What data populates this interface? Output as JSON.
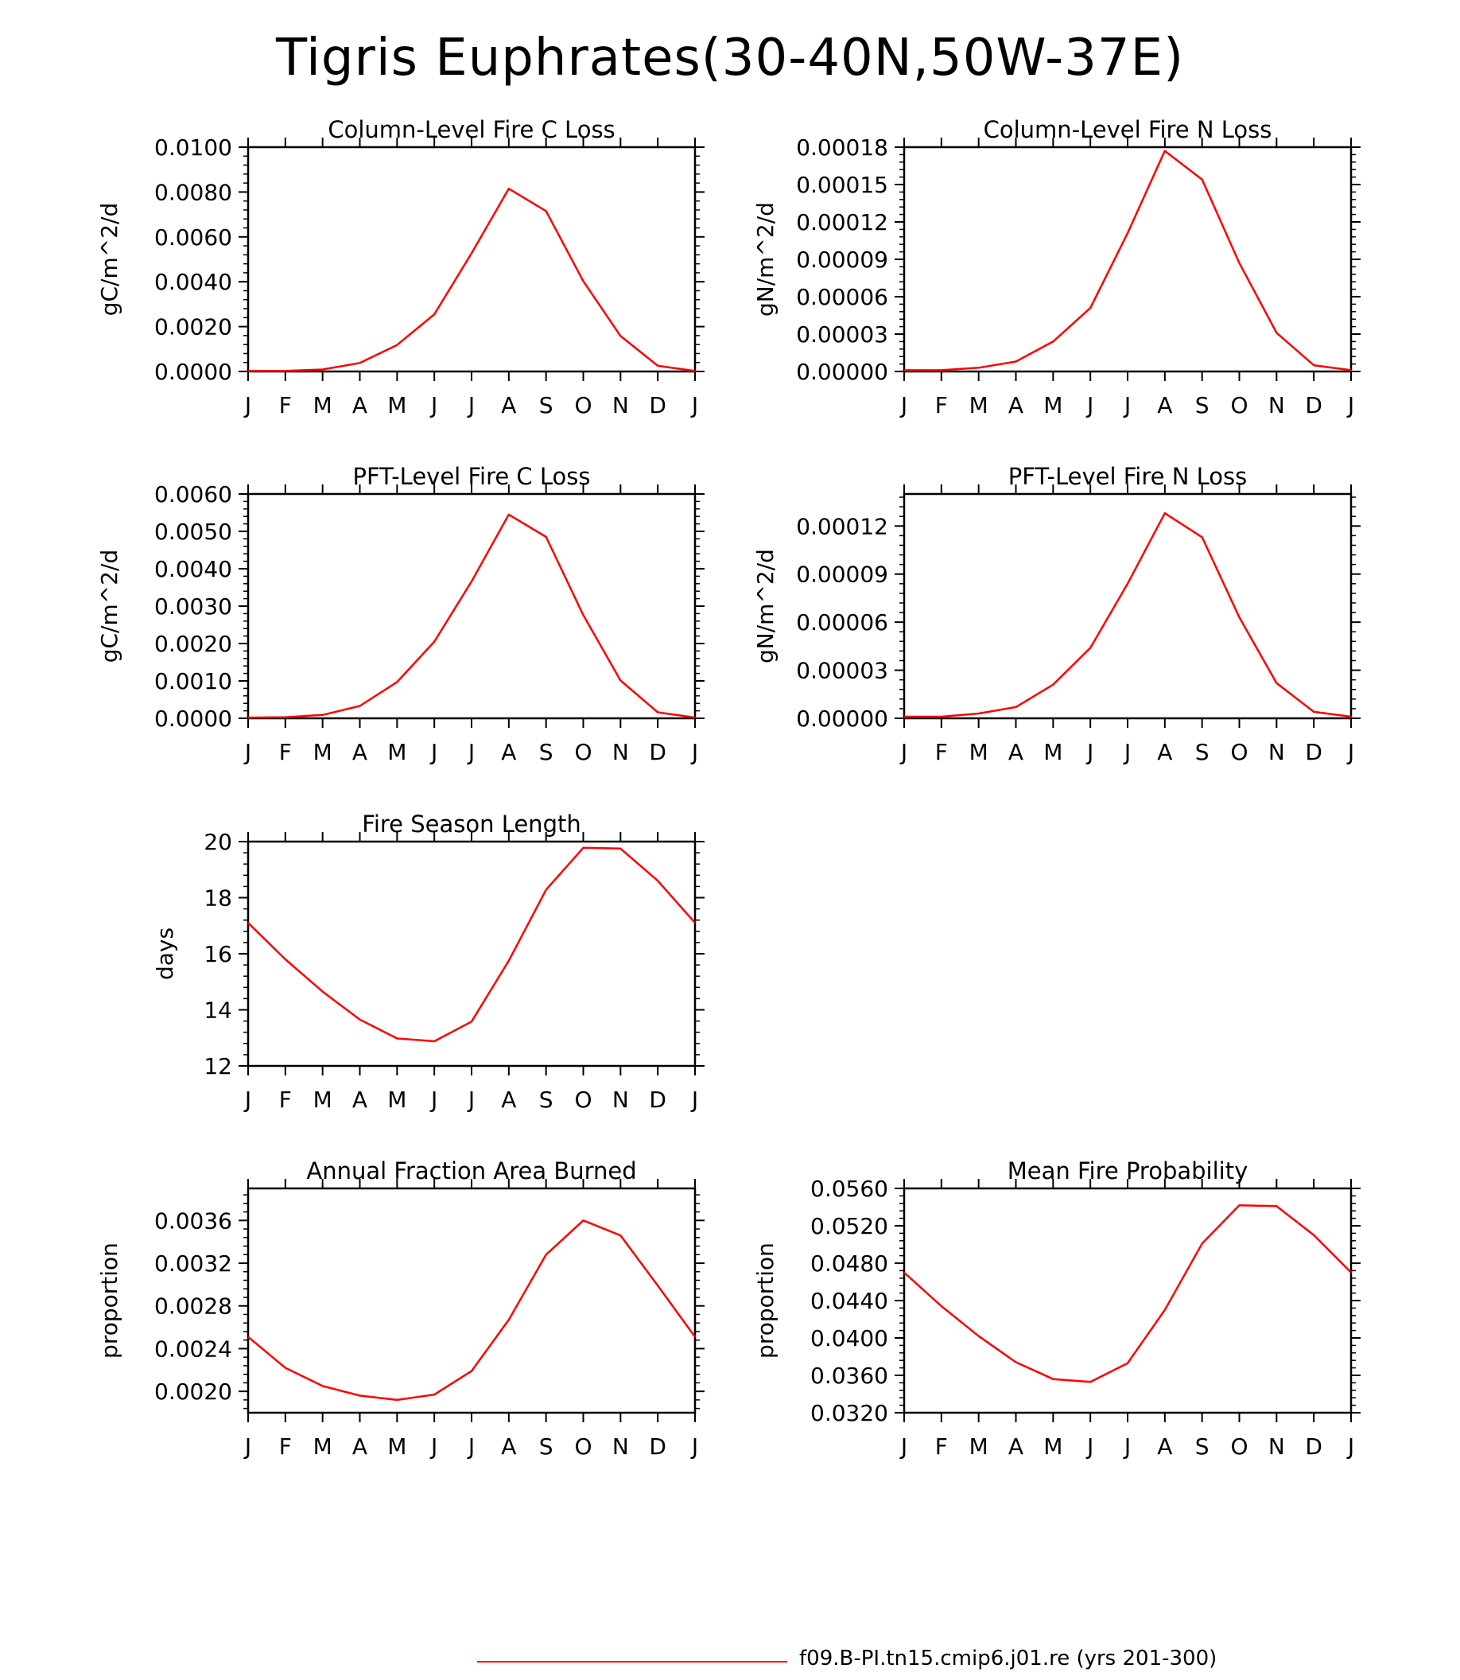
{
  "title": "Tigris Euphrates(30-40N,50W-37E)",
  "legend": {
    "label": "f09.B-PI.tn15.cmip6.j01.re (yrs 201-300)",
    "color": "#ff0000"
  },
  "months": [
    "J",
    "F",
    "M",
    "A",
    "M",
    "J",
    "J",
    "A",
    "S",
    "O",
    "N",
    "D",
    "J"
  ],
  "chart_data": [
    {
      "type": "line",
      "title": "Column-Level Fire C Loss",
      "ylabel": "gC/m^2/d",
      "x": [
        "J",
        "F",
        "M",
        "A",
        "M",
        "J",
        "J",
        "A",
        "S",
        "O",
        "N",
        "D",
        "J"
      ],
      "series": [
        {
          "name": "f09.B-PI.tn15.cmip6.j01.re (yrs 201-300)",
          "values": [
            2e-05,
            3e-05,
            9e-05,
            0.00038,
            0.00118,
            0.00255,
            0.00527,
            0.00815,
            0.00715,
            0.00403,
            0.00158,
            0.00025,
            2e-05
          ]
        }
      ],
      "ylim": [
        0,
        0.01
      ],
      "yticks": [
        "0.0000",
        "0.0020",
        "0.0040",
        "0.0060",
        "0.0080",
        "0.0100"
      ],
      "line_color": "#ff0000"
    },
    {
      "type": "line",
      "title": "Column-Level Fire N Loss",
      "ylabel": "gN/m^2/d",
      "x": [
        "J",
        "F",
        "M",
        "A",
        "M",
        "J",
        "J",
        "A",
        "S",
        "O",
        "N",
        "D",
        "J"
      ],
      "series": [
        {
          "name": "f09.B-PI.tn15.cmip6.j01.re (yrs 201-300)",
          "values": [
            1e-06,
            1e-06,
            3e-06,
            8e-06,
            2.4e-05,
            5.1e-05,
            0.000111,
            0.000177,
            0.000154,
            8.7e-05,
            3.1e-05,
            5e-06,
            1e-06
          ]
        }
      ],
      "ylim": [
        0,
        0.00018
      ],
      "yticks": [
        "0.00000",
        "0.00003",
        "0.00006",
        "0.00009",
        "0.00012",
        "0.00015",
        "0.00018"
      ],
      "line_color": "#ff0000"
    },
    {
      "type": "line",
      "title": "PFT-Level Fire C Loss",
      "ylabel": "gC/m^2/d",
      "x": [
        "J",
        "F",
        "M",
        "A",
        "M",
        "J",
        "J",
        "A",
        "S",
        "O",
        "N",
        "D",
        "J"
      ],
      "series": [
        {
          "name": "f09.B-PI.tn15.cmip6.j01.re (yrs 201-300)",
          "values": [
            2e-05,
            3e-05,
            9e-05,
            0.00033,
            0.00097,
            0.00205,
            0.00366,
            0.00545,
            0.00485,
            0.00276,
            0.00101,
            0.00016,
            2e-05
          ]
        }
      ],
      "ylim": [
        0,
        0.006
      ],
      "yticks": [
        "0.0000",
        "0.0010",
        "0.0020",
        "0.0030",
        "0.0040",
        "0.0050",
        "0.0060"
      ],
      "line_color": "#ff0000"
    },
    {
      "type": "line",
      "title": "PFT-Level Fire N Loss",
      "ylabel": "gN/m^2/d",
      "x": [
        "J",
        "F",
        "M",
        "A",
        "M",
        "J",
        "J",
        "A",
        "S",
        "O",
        "N",
        "D",
        "J"
      ],
      "series": [
        {
          "name": "f09.B-PI.tn15.cmip6.j01.re (yrs 201-300)",
          "values": [
            1e-06,
            1e-06,
            3e-06,
            7e-06,
            2.1e-05,
            4.4e-05,
            8.4e-05,
            0.000128,
            0.000113,
            6.3e-05,
            2.2e-05,
            4e-06,
            1e-06
          ]
        }
      ],
      "ylim": [
        0,
        0.00014
      ],
      "yticks": [
        "0.00000",
        "0.00003",
        "0.00006",
        "0.00009",
        "0.00012"
      ],
      "line_color": "#ff0000"
    },
    {
      "type": "line",
      "title": "Fire Season Length",
      "ylabel": "days",
      "x": [
        "J",
        "F",
        "M",
        "A",
        "M",
        "J",
        "J",
        "A",
        "S",
        "O",
        "N",
        "D",
        "J"
      ],
      "series": [
        {
          "name": "f09.B-PI.tn15.cmip6.j01.re (yrs 201-300)",
          "values": [
            17.1,
            15.8,
            14.65,
            13.65,
            12.98,
            12.88,
            13.58,
            15.75,
            18.28,
            19.78,
            19.75,
            18.6,
            17.1
          ]
        }
      ],
      "ylim": [
        12,
        20
      ],
      "yticks": [
        "12",
        "14",
        "16",
        "18",
        "20"
      ],
      "line_color": "#ff0000"
    },
    {
      "type": "line",
      "title": "Annual Fraction Area Burned",
      "ylabel": "proportion",
      "x": [
        "J",
        "F",
        "M",
        "A",
        "M",
        "J",
        "J",
        "A",
        "S",
        "O",
        "N",
        "D",
        "J"
      ],
      "series": [
        {
          "name": "f09.B-PI.tn15.cmip6.j01.re (yrs 201-300)",
          "values": [
            0.00251,
            0.00222,
            0.00205,
            0.00196,
            0.00192,
            0.00197,
            0.00219,
            0.00267,
            0.00328,
            0.0036,
            0.00346,
            0.00299,
            0.00251
          ]
        }
      ],
      "ylim": [
        0.0018,
        0.0039
      ],
      "yticks": [
        "0.0020",
        "0.0024",
        "0.0028",
        "0.0032",
        "0.0036"
      ],
      "line_color": "#ff0000"
    },
    {
      "type": "line",
      "title": "Mean Fire Probability",
      "ylabel": "proportion",
      "x": [
        "J",
        "F",
        "M",
        "A",
        "M",
        "J",
        "J",
        "A",
        "S",
        "O",
        "N",
        "D",
        "J"
      ],
      "series": [
        {
          "name": "f09.B-PI.tn15.cmip6.j01.re (yrs 201-300)",
          "values": [
            0.047,
            0.0434,
            0.0402,
            0.0374,
            0.0356,
            0.0353,
            0.0373,
            0.043,
            0.0501,
            0.0542,
            0.0541,
            0.051,
            0.047
          ]
        }
      ],
      "ylim": [
        0.032,
        0.056
      ],
      "yticks": [
        "0.0320",
        "0.0360",
        "0.0400",
        "0.0440",
        "0.0480",
        "0.0520",
        "0.0560"
      ],
      "line_color": "#ff0000"
    }
  ]
}
